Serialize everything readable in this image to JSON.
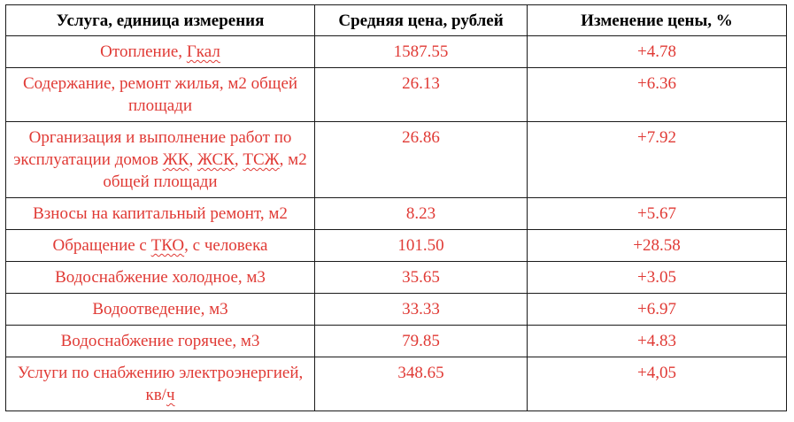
{
  "table": {
    "headers": {
      "service": "Услуга, единица измерения",
      "price": "Средняя цена, рублей",
      "change": "Изменение цены, %"
    },
    "rows": [
      {
        "service_parts": [
          "Отопление, ",
          "Гкал"
        ],
        "price": "1587.55",
        "change": "+4.78"
      },
      {
        "service": "Содержание, ремонт жилья, м2 общей площади",
        "price": "26.13",
        "change": "+6.36"
      },
      {
        "service_parts": [
          "Организация и выполнение работ по эксплуатации домов ",
          "ЖК",
          ", ",
          "ЖСК",
          ", ",
          "ТСЖ",
          ", м2 общей площади"
        ],
        "price": "26.86",
        "change": "+7.92"
      },
      {
        "service": "Взносы на капитальный ремонт, м2",
        "price": "8.23",
        "change": "+5.67"
      },
      {
        "service_parts": [
          "Обращение с ",
          "ТКО",
          ", с человека"
        ],
        "price": "101.50",
        "change": "+28.58"
      },
      {
        "service": "Водоснабжение холодное, м3",
        "price": "35.65",
        "change": "+3.05"
      },
      {
        "service": "Водоотведение, м3",
        "price": "33.33",
        "change": "+6.97"
      },
      {
        "service": "Водоснабжение горячее, м3",
        "price": "79.85",
        "change": "+4.83"
      },
      {
        "service_parts": [
          "Услуги по снабжению электроэнергией, кв/",
          "ч"
        ],
        "price": "348.65",
        "change": "+4,05"
      }
    ]
  }
}
